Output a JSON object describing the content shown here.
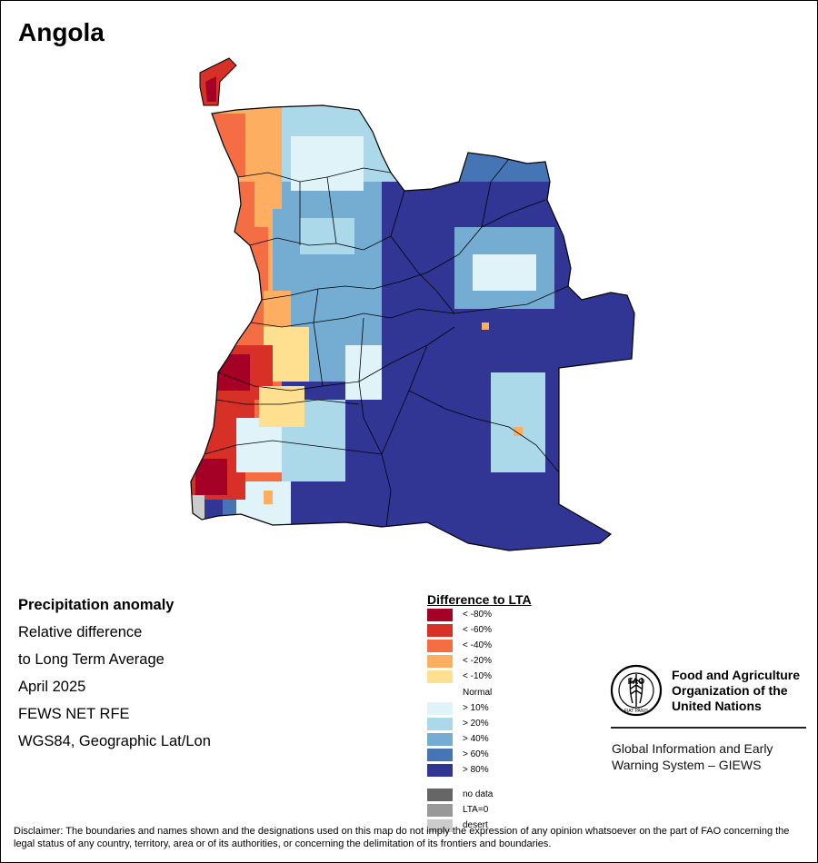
{
  "map": {
    "title": "Angola",
    "info_lines": [
      "Precipitation anomaly",
      "Relative difference",
      "to Long Term Average",
      "April 2025",
      "FEWS NET RFE",
      "WGS84, Geographic Lat/Lon"
    ],
    "legend_title": "Difference to LTA",
    "legend": [
      {
        "label": "< -80%",
        "color": "#a50026"
      },
      {
        "label": "< -60%",
        "color": "#d73027"
      },
      {
        "label": "< -40%",
        "color": "#f46d43"
      },
      {
        "label": "< -20%",
        "color": "#fdae61"
      },
      {
        "label": "< -10%",
        "color": "#fee090"
      },
      {
        "label": "Normal",
        "color": "#ffffff"
      },
      {
        "label": "> 10%",
        "color": "#e0f3f8"
      },
      {
        "label": "> 20%",
        "color": "#abd9e9"
      },
      {
        "label": "> 40%",
        "color": "#74add1"
      },
      {
        "label": "> 60%",
        "color": "#4575b4"
      },
      {
        "label": "> 80%",
        "color": "#313695"
      }
    ],
    "legend_extra": [
      {
        "label": "no data",
        "color": "#666666"
      },
      {
        "label": "LTA=0",
        "color": "#999999"
      },
      {
        "label": "desert",
        "color": "#cccccc"
      }
    ],
    "fao_name": [
      "Food and Agriculture",
      "Organization of the",
      "United Nations"
    ],
    "giews_name": [
      "Global Information and Early",
      "Warning System – GIEWS"
    ],
    "disclaimer": "Disclaimer: The boundaries and names shown and the designations used on this map do not imply the expression of any opinion whatsoever on the part of FAO concerning the legal status of any country, territory, area or of its authorities, or concerning the delimitation of its frontiers and boundaries.",
    "fao_logo_text": {
      "top": "FAO",
      "bottom": "FIAT PANIS"
    }
  }
}
